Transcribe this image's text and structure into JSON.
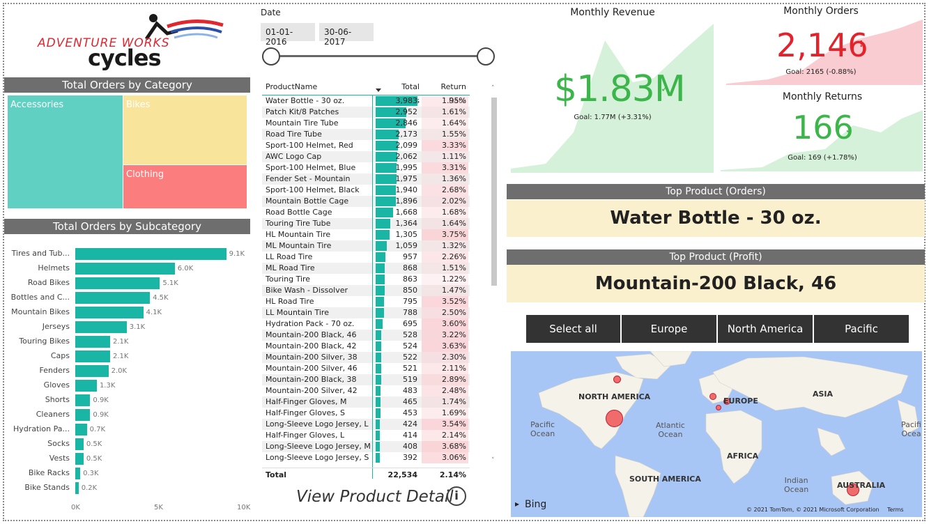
{
  "logo": {
    "line1": "ADVENTURE WORKS",
    "line2": "cycles"
  },
  "treemap": {
    "title": "Total Orders by Category",
    "cells": [
      {
        "label": "Accessories",
        "color": "#60d0c3"
      },
      {
        "label": "Bikes",
        "color": "#f8e59b"
      },
      {
        "label": "Clothing",
        "color": "#fb7d7d"
      }
    ]
  },
  "subcategory": {
    "title": "Total Orders by Subcategory",
    "axis": [
      "0K",
      "5K",
      "10K"
    ],
    "bars": [
      {
        "label": "Tires and Tub...",
        "value": 9.1,
        "text": "9.1K"
      },
      {
        "label": "Helmets",
        "value": 6.0,
        "text": "6.0K"
      },
      {
        "label": "Road Bikes",
        "value": 5.1,
        "text": "5.1K"
      },
      {
        "label": "Bottles and C...",
        "value": 4.5,
        "text": "4.5K"
      },
      {
        "label": "Mountain Bikes",
        "value": 4.1,
        "text": "4.1K"
      },
      {
        "label": "Jerseys",
        "value": 3.1,
        "text": "3.1K"
      },
      {
        "label": "Touring Bikes",
        "value": 2.1,
        "text": "2.1K"
      },
      {
        "label": "Caps",
        "value": 2.1,
        "text": "2.1K"
      },
      {
        "label": "Fenders",
        "value": 2.0,
        "text": "2.0K"
      },
      {
        "label": "Gloves",
        "value": 1.3,
        "text": "1.3K"
      },
      {
        "label": "Shorts",
        "value": 0.9,
        "text": "0.9K"
      },
      {
        "label": "Cleaners",
        "value": 0.9,
        "text": "0.9K"
      },
      {
        "label": "Hydration Pa...",
        "value": 0.7,
        "text": "0.7K"
      },
      {
        "label": "Socks",
        "value": 0.5,
        "text": "0.5K"
      },
      {
        "label": "Vests",
        "value": 0.5,
        "text": "0.5K"
      },
      {
        "label": "Bike Racks",
        "value": 0.3,
        "text": "0.3K"
      },
      {
        "label": "Bike Stands",
        "value": 0.2,
        "text": "0.2K"
      }
    ]
  },
  "date_slicer": {
    "label": "Date",
    "start": "01-01-2016",
    "end": "30-06-2017"
  },
  "table": {
    "headers": [
      "ProductName",
      "Total Orders",
      "Return Rate"
    ],
    "rows": [
      [
        "Water Bottle - 30 oz.",
        3983,
        "1.95%"
      ],
      [
        "Patch Kit/8 Patches",
        2952,
        "1.61%"
      ],
      [
        "Mountain Tire Tube",
        2846,
        "1.64%"
      ],
      [
        "Road Tire Tube",
        2173,
        "1.55%"
      ],
      [
        "Sport-100 Helmet, Red",
        2099,
        "3.33%"
      ],
      [
        "AWC Logo Cap",
        2062,
        "1.11%"
      ],
      [
        "Sport-100 Helmet, Blue",
        1995,
        "3.31%"
      ],
      [
        "Fender Set - Mountain",
        1975,
        "1.36%"
      ],
      [
        "Sport-100 Helmet, Black",
        1940,
        "2.68%"
      ],
      [
        "Mountain Bottle Cage",
        1896,
        "2.02%"
      ],
      [
        "Road Bottle Cage",
        1668,
        "1.68%"
      ],
      [
        "Touring Tire Tube",
        1364,
        "1.64%"
      ],
      [
        "HL Mountain Tire",
        1305,
        "3.75%"
      ],
      [
        "ML Mountain Tire",
        1059,
        "1.32%"
      ],
      [
        "LL Road Tire",
        957,
        "2.26%"
      ],
      [
        "ML Road Tire",
        868,
        "1.51%"
      ],
      [
        "Touring Tire",
        863,
        "1.22%"
      ],
      [
        "Bike Wash - Dissolver",
        850,
        "1.47%"
      ],
      [
        "HL Road Tire",
        795,
        "3.52%"
      ],
      [
        "LL Mountain Tire",
        788,
        "2.50%"
      ],
      [
        "Hydration Pack - 70 oz.",
        695,
        "3.60%"
      ],
      [
        "Mountain-200 Black, 46",
        528,
        "3.22%"
      ],
      [
        "Mountain-200 Black, 42",
        524,
        "3.63%"
      ],
      [
        "Mountain-200 Silver, 38",
        522,
        "2.30%"
      ],
      [
        "Mountain-200 Silver, 46",
        521,
        "2.11%"
      ],
      [
        "Mountain-200 Black, 38",
        519,
        "2.89%"
      ],
      [
        "Mountain-200 Silver, 42",
        483,
        "2.48%"
      ],
      [
        "Half-Finger Gloves, M",
        465,
        "1.74%"
      ],
      [
        "Half-Finger Gloves, S",
        453,
        "1.69%"
      ],
      [
        "Long-Sleeve Logo Jersey, L",
        424,
        "3.54%"
      ],
      [
        "Half-Finger Gloves, L",
        414,
        "2.14%"
      ],
      [
        "Long-Sleeve Logo Jersey, M",
        408,
        "3.68%"
      ],
      [
        "Long-Sleeve Logo Jersey, S",
        392,
        "3.06%"
      ]
    ],
    "total": {
      "label": "Total",
      "orders": "22,534",
      "rate": "2.14%"
    }
  },
  "view_detail": "View Product Detail",
  "kpis": {
    "revenue": {
      "title": "Monthly Revenue",
      "value": "$1.83M",
      "goal": "Goal: 1.77M (+3.31%)",
      "color": "#3cb54a"
    },
    "orders": {
      "title": "Monthly Orders",
      "value": "2,146",
      "goal": "Goal: 2165 (-0.88%)",
      "color": "#e3222c"
    },
    "returns": {
      "title": "Monthly Returns",
      "value": "166",
      "goal": "Goal: 169 (+1.78%)",
      "color": "#3cb54a"
    }
  },
  "top_orders": {
    "title": "Top Product (Orders)",
    "value": "Water Bottle - 30 oz."
  },
  "top_profit": {
    "title": "Top Product (Profit)",
    "value": "Mountain-200 Black, 46"
  },
  "regions": [
    "Select all",
    "Europe",
    "North America",
    "Pacific"
  ],
  "map": {
    "continents": [
      "NORTH AMERICA",
      "EUROPE",
      "ASIA",
      "AFRICA",
      "SOUTH AMERICA",
      "AUSTRALIA"
    ],
    "oceans": [
      "Pacific\nOcean",
      "Atlantic\nOcean",
      "Indian\nOcean",
      "Pacifi\nOcea"
    ],
    "bing": "Bing",
    "copyright": "© 2021 TomTom, © 2021 Microsoft Corporation",
    "terms": "Terms"
  }
}
